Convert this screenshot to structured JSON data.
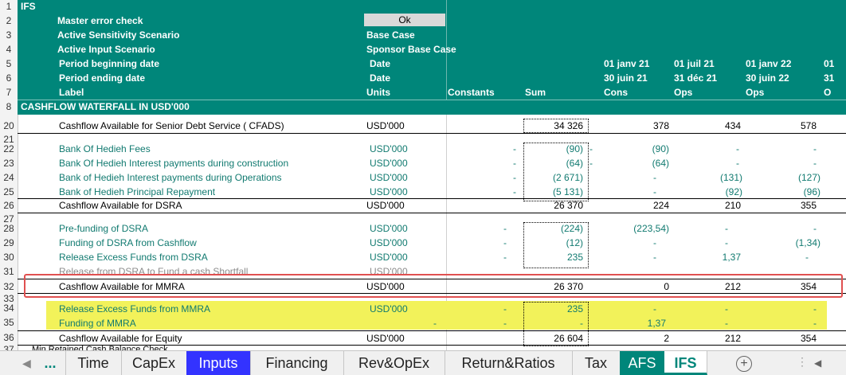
{
  "sheet_title": "IFS",
  "ok_value": "Ok",
  "header_rows": [
    {
      "label": "Master error check",
      "units": ""
    },
    {
      "label": "Active Sensitivity Scenario",
      "units": "Base Case"
    },
    {
      "label": "Active Input Scenario",
      "units": "Sponsor Base Case"
    },
    {
      "label": "Period beginning date",
      "units": "Date"
    },
    {
      "label": "Period ending date",
      "units": "Date"
    },
    {
      "label": "Label",
      "units": "Units"
    }
  ],
  "col_headers": {
    "constants": "Constants",
    "sum": "Sum"
  },
  "periods": [
    {
      "begin": "01 janv 21",
      "end": "30 juin 21",
      "type": "Cons"
    },
    {
      "begin": "01 juil 21",
      "end": "31 déc 21",
      "type": "Ops"
    },
    {
      "begin": "01 janv 22",
      "end": "30 juin 22",
      "type": "Ops"
    },
    {
      "begin": "01",
      "end": "31",
      "type": "O"
    }
  ],
  "section_title": "CASHFLOW WATERFALL IN USD'000",
  "row_numbers": [
    "1",
    "2",
    "3",
    "4",
    "5",
    "6",
    "7",
    "8",
    "20",
    "21",
    "22",
    "23",
    "24",
    "25",
    "26",
    "27",
    "28",
    "29",
    "30",
    "31",
    "32",
    "33",
    "34",
    "35",
    "36",
    "37"
  ],
  "rows": [
    {
      "num": "20",
      "label": "Cashflow Available for Senior Debt Service ( CFADS)",
      "units": "USD'000",
      "constants": "",
      "sum": "34 326",
      "p1": "378",
      "p2": "434",
      "p3": "578",
      "style": "black"
    },
    {
      "num": "22",
      "label": "Bank Of Hedieh  Fees",
      "units": "USD'000",
      "constants": "-",
      "sum": "(90)",
      "p1": "(90)",
      "p2": "-",
      "p3": "-",
      "style": "teal"
    },
    {
      "num": "23",
      "label": "Bank Of Hedieh  Interest payments during construction",
      "units": "USD'000",
      "constants": "-",
      "sum": "(64)",
      "p1": "(64)",
      "p2": "-",
      "p3": "-",
      "style": "teal"
    },
    {
      "num": "24",
      "label": "Bank of Hedieh  Interest payments during Operations",
      "units": "USD'000",
      "constants": "-",
      "sum": "(2 671)",
      "p1": "-",
      "p2": "(131)",
      "p3": "(127)",
      "style": "teal"
    },
    {
      "num": "25",
      "label": "Bank of Hedieh  Principal Repayment",
      "units": "USD'000",
      "constants": "-",
      "sum": "(5 131)",
      "p1": "-",
      "p2": "(92)",
      "p3": "(96)",
      "style": "teal"
    },
    {
      "num": "26",
      "label": "Cashflow Available for DSRA",
      "units": "USD'000",
      "constants": "",
      "sum": "26 370",
      "p1": "224",
      "p2": "210",
      "p3": "355",
      "style": "black"
    },
    {
      "num": "28",
      "label": "Pre-funding of DSRA",
      "units": "USD'000",
      "constants": "-",
      "sum": "(224)",
      "p1": "(223,54)",
      "p2": "-",
      "p3": "-",
      "style": "teal"
    },
    {
      "num": "29",
      "label": "Funding of DSRA from Cashflow",
      "units": "USD'000",
      "constants": "-",
      "sum": "(12)",
      "p1": "-",
      "p2": "-",
      "p3": "(1,34)",
      "style": "teal"
    },
    {
      "num": "30",
      "label": "Release Excess Funds from DSRA",
      "units": "USD'000",
      "constants": "-",
      "sum": "235",
      "p1": "-",
      "p2": "1,37",
      "p3": "-",
      "style": "teal"
    },
    {
      "num": "31",
      "label": "Release from DSRA to Fund a cash Shortfall",
      "units": "USD'000",
      "constants": "",
      "sum": "",
      "p1": "",
      "p2": "",
      "p3": "",
      "style": "gray"
    },
    {
      "num": "32",
      "label": "Cashflow Available for MMRA",
      "units": "USD'000",
      "constants": "",
      "sum": "26 370",
      "p1": "0",
      "p2": "212",
      "p3": "354",
      "style": "black"
    },
    {
      "num": "34",
      "label": "Release Excess Funds from MMRA",
      "units": "USD'000",
      "constants": "-",
      "sum": "235",
      "p1": "-",
      "p2": "-",
      "p3": "-",
      "style": "teal"
    },
    {
      "num": "35",
      "label": "Funding of MMRA",
      "units": "",
      "constants": "-",
      "sum": "-",
      "p1": "1,37",
      "p2": "-",
      "p3": "-",
      "style": "teal",
      "extra": "-"
    },
    {
      "num": "36",
      "label": "Cashflow Available for Equity",
      "units": "USD'000",
      "constants": "",
      "sum": "26 604",
      "p1": "2",
      "p2": "212",
      "p3": "354",
      "style": "black"
    },
    {
      "num": "37",
      "label": "Min Retained Cash Balance Check",
      "units": "",
      "constants": "",
      "sum": "",
      "p1": "",
      "p2": "",
      "p3": "",
      "style": "black"
    }
  ],
  "tabs": [
    {
      "label": "...",
      "style": "nav"
    },
    {
      "label": "Time",
      "style": "normal"
    },
    {
      "label": "CapEx",
      "style": "normal"
    },
    {
      "label": "Inputs",
      "style": "blue"
    },
    {
      "label": "Financing",
      "style": "normal"
    },
    {
      "label": "Rev&OpEx",
      "style": "normal"
    },
    {
      "label": "Return&Ratios",
      "style": "normal"
    },
    {
      "label": "Tax",
      "style": "normal"
    },
    {
      "label": "AFS",
      "style": "teal"
    },
    {
      "label": "IFS",
      "style": "active"
    }
  ],
  "add_sheet_symbol": "+",
  "colors": {
    "header_teal": "#00867a",
    "highlight_yellow": "#f2f25a",
    "inputs_tab_blue": "#3333ff",
    "callout_red": "#e05050"
  }
}
